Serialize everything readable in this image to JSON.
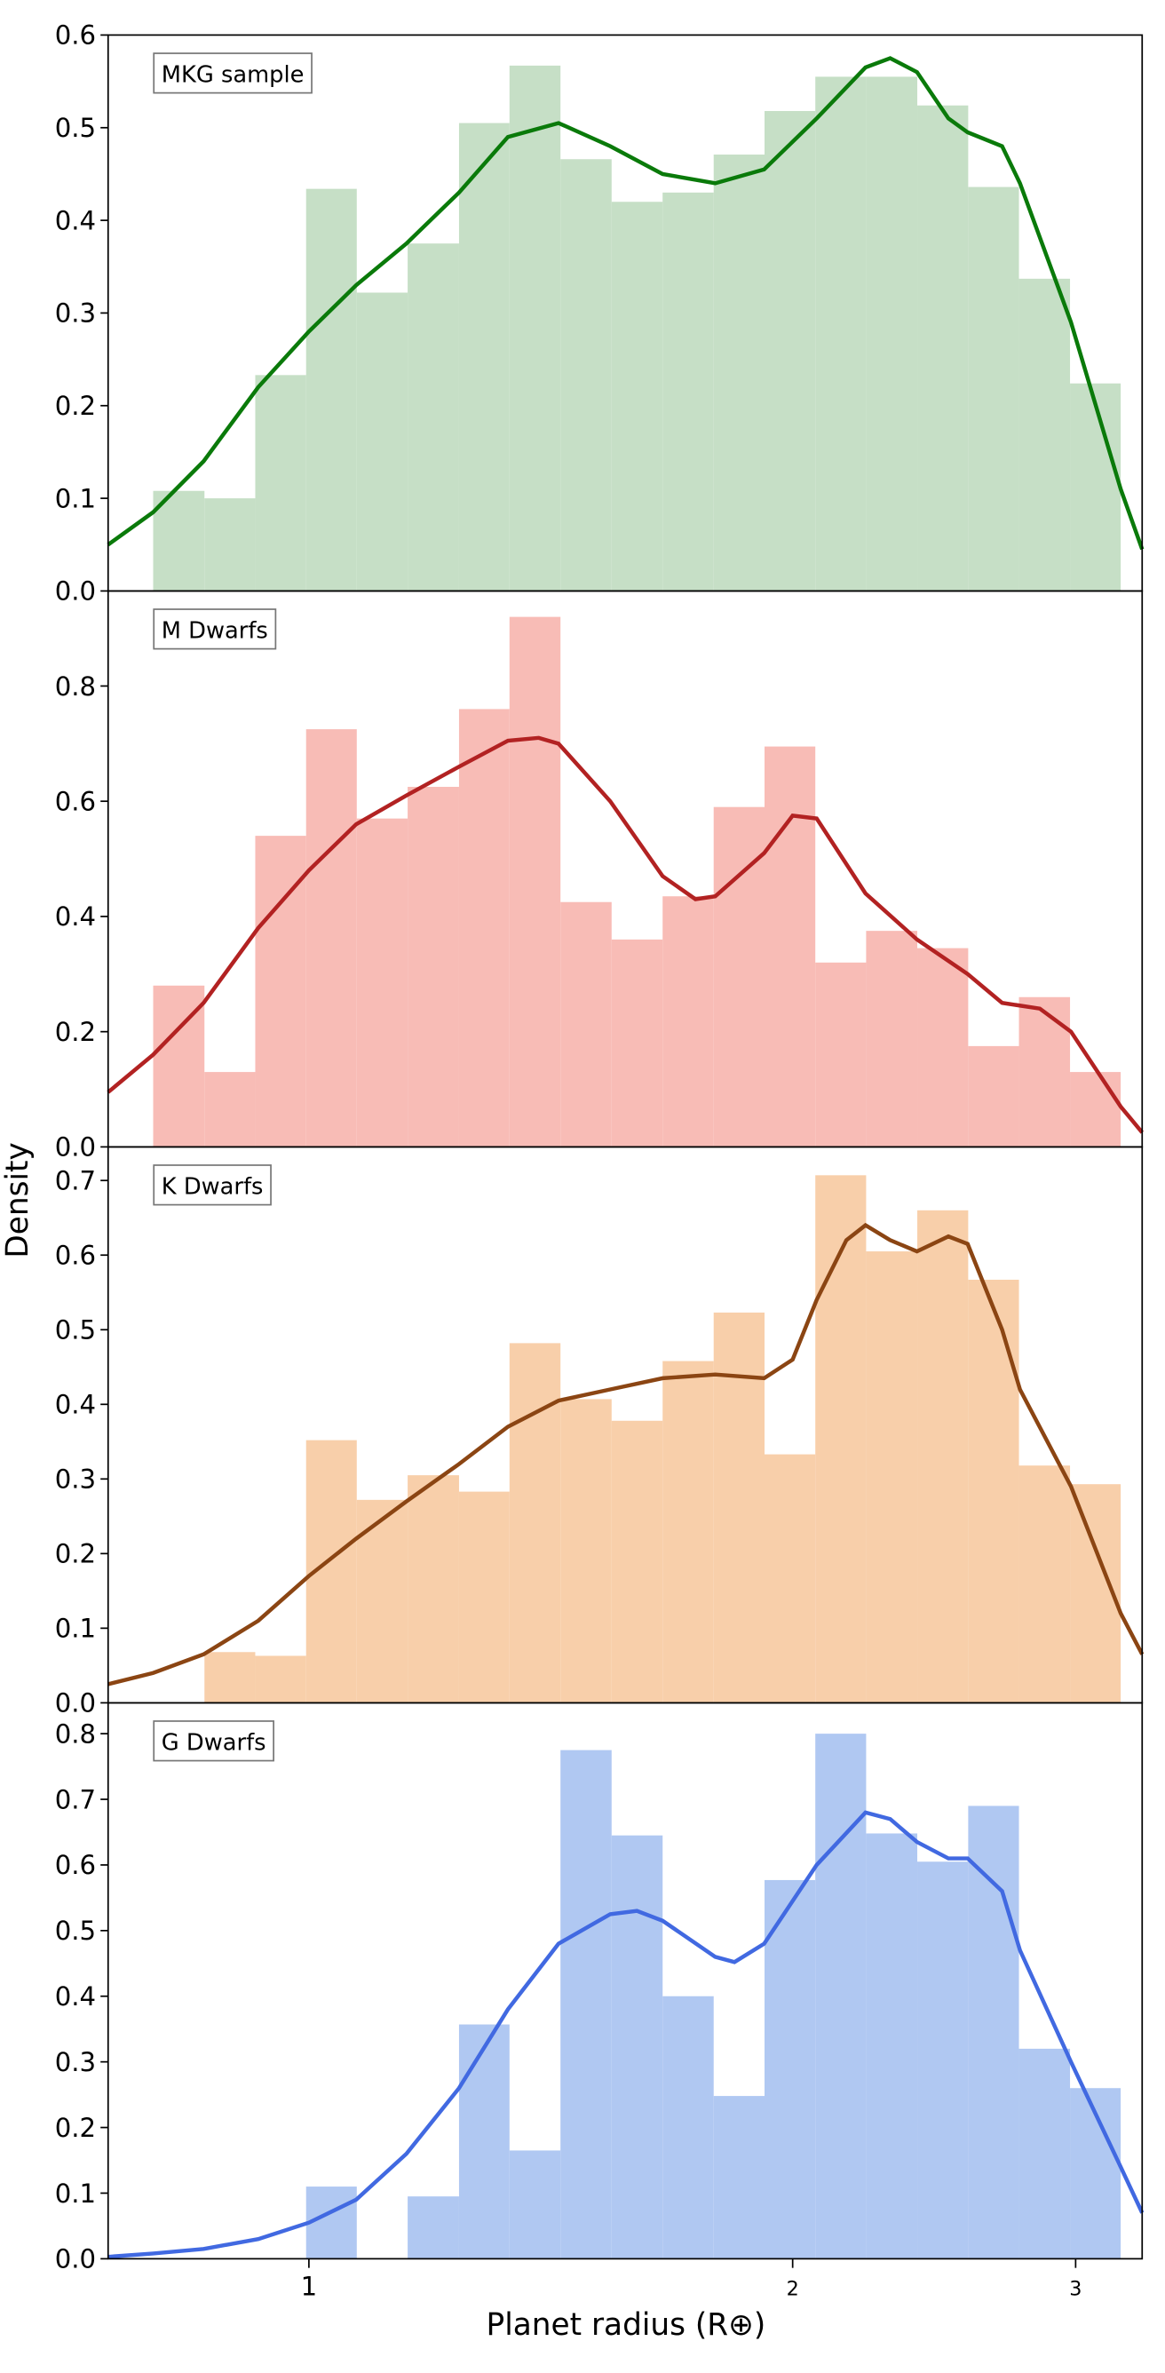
{
  "figure": {
    "ylabel": "Density",
    "xlabel": "Planet radius (R⊕)"
  },
  "chart_data": [
    {
      "type": "histogram",
      "label": "MKG sample",
      "color": "#c6dfc6",
      "bins": [
        0.8,
        0.861,
        0.926,
        0.996,
        1.071,
        1.152,
        1.24,
        1.333,
        1.434,
        1.543,
        1.66,
        1.786,
        1.921,
        2.066,
        2.222,
        2.391,
        2.572,
        2.766,
        2.976,
        3.2
      ],
      "values": [
        0.108,
        0.1,
        0.233,
        0.434,
        0.322,
        0.375,
        0.505,
        0.567,
        0.466,
        0.42,
        0.43,
        0.471,
        0.518,
        0.555,
        0.555,
        0.524,
        0.436,
        0.337,
        0.224
      ],
      "kde": {
        "color": "#0a7a0a",
        "x": [
          0.75,
          0.8,
          0.86,
          0.93,
          1.0,
          1.07,
          1.15,
          1.24,
          1.33,
          1.43,
          1.54,
          1.66,
          1.79,
          1.92,
          2.07,
          2.22,
          2.3,
          2.39,
          2.5,
          2.57,
          2.7,
          2.77,
          2.98,
          3.2,
          3.3
        ],
        "values": [
          0.05,
          0.085,
          0.14,
          0.22,
          0.28,
          0.33,
          0.375,
          0.43,
          0.49,
          0.505,
          0.48,
          0.45,
          0.44,
          0.455,
          0.51,
          0.565,
          0.575,
          0.56,
          0.51,
          0.495,
          0.48,
          0.44,
          0.29,
          0.11,
          0.045
        ]
      },
      "xlim": [
        0.75,
        3.3
      ],
      "ylim": [
        0,
        0.6
      ],
      "yticks": [
        {
          "value": 0,
          "label": "0.0"
        },
        0.1,
        0.2,
        0.3,
        0.4,
        0.5,
        0.6
      ]
    },
    {
      "type": "histogram",
      "label": "M Dwarfs",
      "color": "#f8bcb6",
      "bins": [
        0.8,
        0.861,
        0.926,
        0.996,
        1.071,
        1.152,
        1.24,
        1.333,
        1.434,
        1.543,
        1.66,
        1.786,
        1.921,
        2.066,
        2.222,
        2.391,
        2.572,
        2.766,
        2.976,
        3.2
      ],
      "values": [
        0.28,
        0.13,
        0.54,
        0.725,
        0.57,
        0.625,
        0.76,
        0.92,
        0.425,
        0.36,
        0.435,
        0.59,
        0.695,
        0.32,
        0.375,
        0.345,
        0.175,
        0.26,
        0.13
      ],
      "kde": {
        "color": "#b22222",
        "x": [
          0.75,
          0.8,
          0.86,
          0.93,
          1.0,
          1.07,
          1.15,
          1.24,
          1.33,
          1.39,
          1.43,
          1.54,
          1.66,
          1.74,
          1.79,
          1.92,
          2.0,
          2.07,
          2.22,
          2.39,
          2.57,
          2.7,
          2.85,
          2.98,
          3.2,
          3.3
        ],
        "values": [
          0.095,
          0.16,
          0.25,
          0.38,
          0.48,
          0.56,
          0.61,
          0.66,
          0.705,
          0.71,
          0.7,
          0.6,
          0.47,
          0.43,
          0.435,
          0.51,
          0.575,
          0.57,
          0.44,
          0.36,
          0.3,
          0.25,
          0.24,
          0.2,
          0.07,
          0.025
        ]
      },
      "xlim": [
        0.75,
        3.3
      ],
      "ylim": [
        0,
        0.965
      ],
      "yticks": [
        {
          "value": 0,
          "label": "0.0"
        },
        0.2,
        0.4,
        0.6,
        0.8
      ]
    },
    {
      "type": "histogram",
      "label": "K Dwarfs",
      "color": "#f8cfaa",
      "bins": [
        0.8,
        0.861,
        0.926,
        0.996,
        1.071,
        1.152,
        1.24,
        1.333,
        1.434,
        1.543,
        1.66,
        1.786,
        1.921,
        2.066,
        2.222,
        2.391,
        2.572,
        2.766,
        2.976,
        3.2
      ],
      "values": [
        0,
        0.068,
        0.063,
        0.352,
        0.272,
        0.305,
        0.283,
        0.482,
        0.407,
        0.378,
        0.458,
        0.523,
        0.333,
        0.707,
        0.605,
        0.66,
        0.567,
        0.318,
        0.293
      ],
      "kde": {
        "color": "#8b4513",
        "x": [
          0.75,
          0.8,
          0.86,
          0.93,
          1.0,
          1.07,
          1.15,
          1.24,
          1.33,
          1.43,
          1.54,
          1.66,
          1.79,
          1.92,
          2.0,
          2.07,
          2.16,
          2.22,
          2.3,
          2.39,
          2.5,
          2.57,
          2.7,
          2.77,
          2.98,
          3.2,
          3.3
        ],
        "values": [
          0.025,
          0.04,
          0.065,
          0.11,
          0.17,
          0.22,
          0.27,
          0.32,
          0.37,
          0.405,
          0.42,
          0.435,
          0.44,
          0.435,
          0.46,
          0.54,
          0.62,
          0.64,
          0.62,
          0.605,
          0.625,
          0.615,
          0.5,
          0.42,
          0.29,
          0.12,
          0.065
        ]
      },
      "xlim": [
        0.75,
        3.3
      ],
      "ylim": [
        0,
        0.745
      ],
      "yticks": [
        {
          "value": 0,
          "label": "0.0"
        },
        0.1,
        0.2,
        0.3,
        0.4,
        0.5,
        0.6,
        0.7
      ]
    },
    {
      "type": "histogram",
      "label": "G Dwarfs",
      "color": "#b0c8f2",
      "bins": [
        0.8,
        0.861,
        0.926,
        0.996,
        1.071,
        1.152,
        1.24,
        1.333,
        1.434,
        1.543,
        1.66,
        1.786,
        1.921,
        2.066,
        2.222,
        2.391,
        2.572,
        2.766,
        2.976,
        3.2
      ],
      "values": [
        0,
        0,
        0,
        0.11,
        0,
        0.095,
        0.357,
        0.165,
        0.775,
        0.645,
        0.4,
        0.248,
        0.577,
        0.8,
        0.648,
        0.605,
        0.69,
        0.32,
        0.26
      ],
      "kde": {
        "color": "#4169e1",
        "x": [
          0.75,
          0.8,
          0.86,
          0.93,
          1.0,
          1.07,
          1.15,
          1.24,
          1.33,
          1.43,
          1.54,
          1.6,
          1.66,
          1.79,
          1.84,
          1.92,
          2.07,
          2.22,
          2.3,
          2.39,
          2.5,
          2.57,
          2.7,
          2.77,
          2.98,
          3.2,
          3.3
        ],
        "values": [
          0.003,
          0.008,
          0.015,
          0.03,
          0.055,
          0.09,
          0.16,
          0.26,
          0.38,
          0.48,
          0.525,
          0.53,
          0.515,
          0.46,
          0.452,
          0.48,
          0.6,
          0.68,
          0.67,
          0.635,
          0.61,
          0.61,
          0.56,
          0.47,
          0.3,
          0.14,
          0.07
        ]
      },
      "xlim": [
        0.75,
        3.3
      ],
      "ylim": [
        0,
        0.847
      ],
      "yticks": [
        {
          "value": 0,
          "label": "0.0"
        },
        0.1,
        0.2,
        0.3,
        0.4,
        0.5,
        0.6,
        0.7,
        0.8
      ],
      "xticks": [
        1,
        2,
        3
      ]
    }
  ]
}
